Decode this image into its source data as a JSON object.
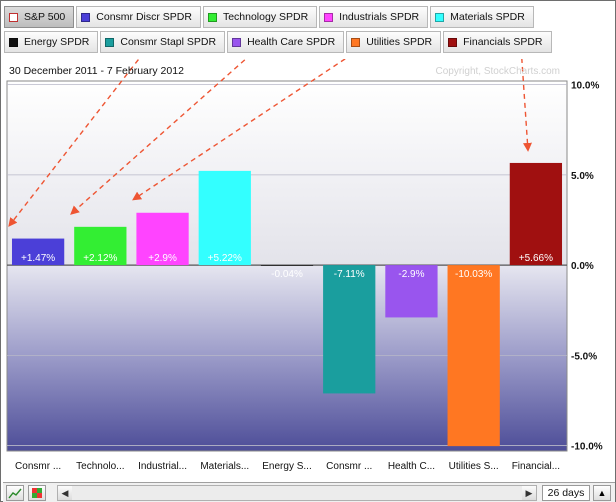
{
  "legend": {
    "row1": [
      {
        "label": "S&P 500",
        "color": "#ffffff",
        "active": true,
        "hollow": true
      },
      {
        "label": "Consmr Discr SPDR",
        "color": "#4b3fd8"
      },
      {
        "label": "Technology SPDR",
        "color": "#33ee33"
      },
      {
        "label": "Industrials SPDR",
        "color": "#ff44ff"
      },
      {
        "label": "Materials SPDR",
        "color": "#33ffff"
      }
    ],
    "row2": [
      {
        "label": "Energy SPDR",
        "color": "#111111"
      },
      {
        "label": "Consmr Stapl SPDR",
        "color": "#1a9e9e"
      },
      {
        "label": "Health Care SPDR",
        "color": "#9955ee"
      },
      {
        "label": "Utilities SPDR",
        "color": "#ff7722"
      },
      {
        "label": "Financials SPDR",
        "color": "#a01010"
      }
    ]
  },
  "date_range": "30 December 2011 - 7 February 2012",
  "watermark": "Copyright, StockCharts.com",
  "bottom_bar": {
    "days": "26 days"
  },
  "chart_data": {
    "type": "bar",
    "categories": [
      "Consmr ...",
      "Technolo...",
      "Industrial...",
      "Materials...",
      "Energy S...",
      "Consmr ...",
      "Health C...",
      "Utilities S...",
      "Financial..."
    ],
    "values": [
      1.47,
      2.12,
      2.9,
      5.22,
      -0.04,
      -7.11,
      -2.9,
      -10.03,
      5.66
    ],
    "data_labels": [
      "+1.47%",
      "+2.12%",
      "+2.9%",
      "+5.22%",
      "-0.04%",
      "-7.11%",
      "-2.9%",
      "-10.03%",
      "+5.66%"
    ],
    "colors": [
      "#4b3fd8",
      "#33ee33",
      "#ff44ff",
      "#33ffff",
      "#111111",
      "#1a9e9e",
      "#9955ee",
      "#ff7722",
      "#a01010"
    ],
    "yticks": [
      {
        "value": 10,
        "label": "10.0%"
      },
      {
        "value": 5,
        "label": "5.0%"
      },
      {
        "value": 0,
        "label": "0.0%"
      },
      {
        "value": -5,
        "label": "-5.0%"
      },
      {
        "value": -10,
        "label": "-10.0%"
      }
    ],
    "ylim": [
      -10.3,
      10.2
    ],
    "axis_side": "right",
    "grid": true,
    "annotations": {
      "arrows": [
        {
          "from_legend": "Consmr Discr SPDR",
          "to_bar": 0
        },
        {
          "from_legend": "Technology SPDR",
          "to_bar": 1
        },
        {
          "from_legend": "Industrials SPDR",
          "to_bar": 2
        },
        {
          "from_legend": "Financials SPDR",
          "to_bar": 8
        }
      ],
      "arrow_color": "#ee5533"
    }
  }
}
